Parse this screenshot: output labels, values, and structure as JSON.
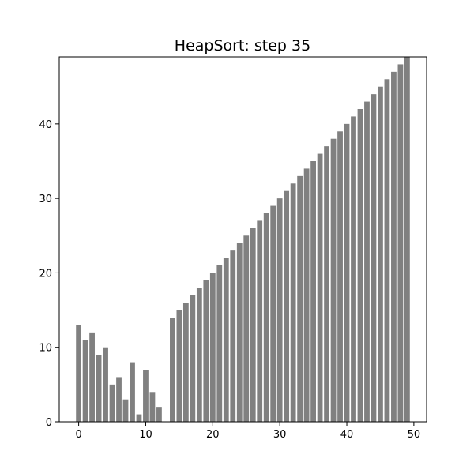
{
  "chart_data": {
    "type": "bar",
    "title": "HeapSort: step 35",
    "xlabel": "",
    "ylabel": "",
    "xlim": [
      -2.9,
      51.9
    ],
    "ylim": [
      0,
      49
    ],
    "x_ticks": [
      0,
      10,
      20,
      30,
      40,
      50
    ],
    "y_ticks": [
      0,
      10,
      20,
      30,
      40
    ],
    "grid": false,
    "bar_color": "#808080",
    "x": [
      0,
      1,
      2,
      3,
      4,
      5,
      6,
      7,
      8,
      9,
      10,
      11,
      12,
      13,
      14,
      15,
      16,
      17,
      18,
      19,
      20,
      21,
      22,
      23,
      24,
      25,
      26,
      27,
      28,
      29,
      30,
      31,
      32,
      33,
      34,
      35,
      36,
      37,
      38,
      39,
      40,
      41,
      42,
      43,
      44,
      45,
      46,
      47,
      48,
      49
    ],
    "values": [
      13,
      11,
      12,
      9,
      10,
      5,
      6,
      3,
      8,
      1,
      7,
      4,
      2,
      0,
      14,
      15,
      16,
      17,
      18,
      19,
      20,
      21,
      22,
      23,
      24,
      25,
      26,
      27,
      28,
      29,
      30,
      31,
      32,
      33,
      34,
      35,
      36,
      37,
      38,
      39,
      40,
      41,
      42,
      43,
      44,
      45,
      46,
      47,
      48,
      49
    ]
  }
}
